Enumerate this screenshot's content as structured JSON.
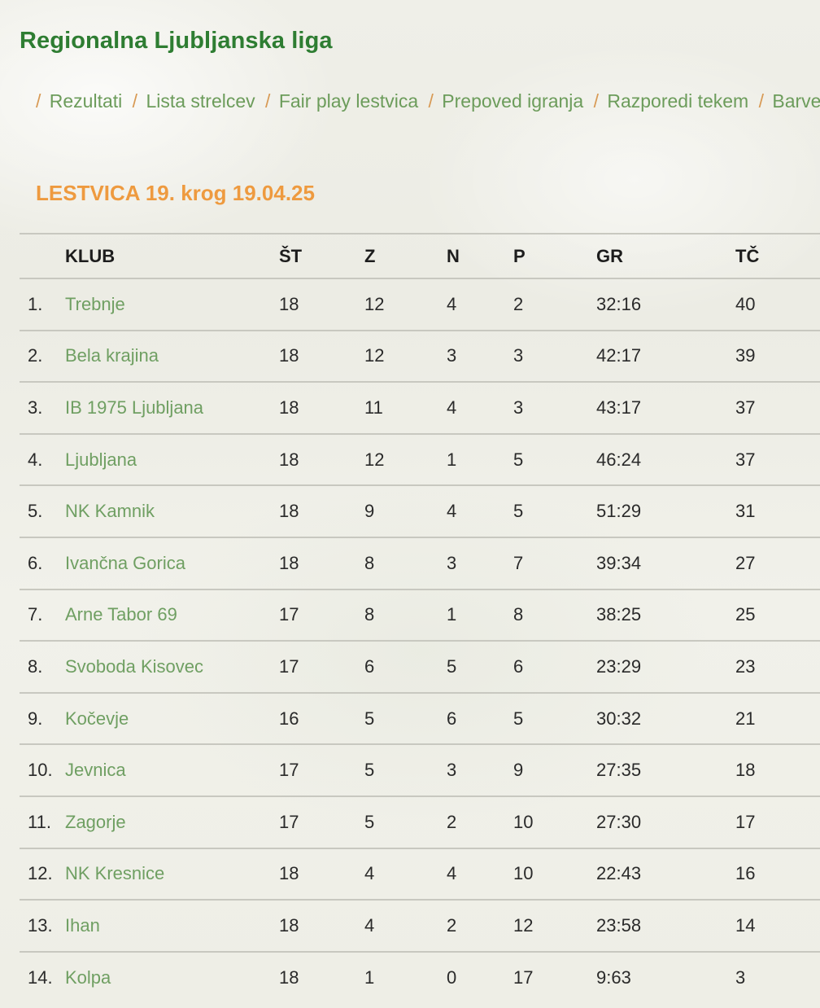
{
  "page": {
    "title": "Regionalna Ljubljanska liga"
  },
  "nav": {
    "separator": "/",
    "links": [
      "Rezultati",
      "Lista strelcev",
      "Fair play lestvica",
      "Prepoved igranja",
      "Razporedi tekem",
      "Barve dre"
    ]
  },
  "standings": {
    "title": "LESTVICA 19. krog 19.04.25",
    "columns": [
      "",
      "KLUB",
      "ŠT",
      "Z",
      "N",
      "P",
      "GR",
      "TČ"
    ],
    "rows": [
      {
        "rank": "1.",
        "club": "Trebnje",
        "st": "18",
        "z": "12",
        "n": "4",
        "p": "2",
        "gr": "32:16",
        "tc": "40"
      },
      {
        "rank": "2.",
        "club": "Bela krajina",
        "st": "18",
        "z": "12",
        "n": "3",
        "p": "3",
        "gr": "42:17",
        "tc": "39"
      },
      {
        "rank": "3.",
        "club": "IB 1975 Ljubljana",
        "st": "18",
        "z": "11",
        "n": "4",
        "p": "3",
        "gr": "43:17",
        "tc": "37"
      },
      {
        "rank": "4.",
        "club": "Ljubljana",
        "st": "18",
        "z": "12",
        "n": "1",
        "p": "5",
        "gr": "46:24",
        "tc": "37"
      },
      {
        "rank": "5.",
        "club": "NK Kamnik",
        "st": "18",
        "z": "9",
        "n": "4",
        "p": "5",
        "gr": "51:29",
        "tc": "31"
      },
      {
        "rank": "6.",
        "club": "Ivančna Gorica",
        "st": "18",
        "z": "8",
        "n": "3",
        "p": "7",
        "gr": "39:34",
        "tc": "27"
      },
      {
        "rank": "7.",
        "club": "Arne Tabor 69",
        "st": "17",
        "z": "8",
        "n": "1",
        "p": "8",
        "gr": "38:25",
        "tc": "25"
      },
      {
        "rank": "8.",
        "club": "Svoboda Kisovec",
        "st": "17",
        "z": "6",
        "n": "5",
        "p": "6",
        "gr": "23:29",
        "tc": "23"
      },
      {
        "rank": "9.",
        "club": "Kočevje",
        "st": "16",
        "z": "5",
        "n": "6",
        "p": "5",
        "gr": "30:32",
        "tc": "21"
      },
      {
        "rank": "10.",
        "club": "Jevnica",
        "st": "17",
        "z": "5",
        "n": "3",
        "p": "9",
        "gr": "27:35",
        "tc": "18"
      },
      {
        "rank": "11.",
        "club": "Zagorje",
        "st": "17",
        "z": "5",
        "n": "2",
        "p": "10",
        "gr": "27:30",
        "tc": "17"
      },
      {
        "rank": "12.",
        "club": "NK Kresnice",
        "st": "18",
        "z": "4",
        "n": "4",
        "p": "10",
        "gr": "22:43",
        "tc": "16"
      },
      {
        "rank": "13.",
        "club": "Ihan",
        "st": "18",
        "z": "4",
        "n": "2",
        "p": "12",
        "gr": "23:58",
        "tc": "14"
      },
      {
        "rank": "14.",
        "club": "Kolpa",
        "st": "18",
        "z": "1",
        "n": "0",
        "p": "17",
        "gr": "9:63",
        "tc": "3"
      }
    ]
  },
  "colors": {
    "title_green": "#2e7d32",
    "link_green": "#6f9f62",
    "accent_orange": "#ee9a3f"
  }
}
